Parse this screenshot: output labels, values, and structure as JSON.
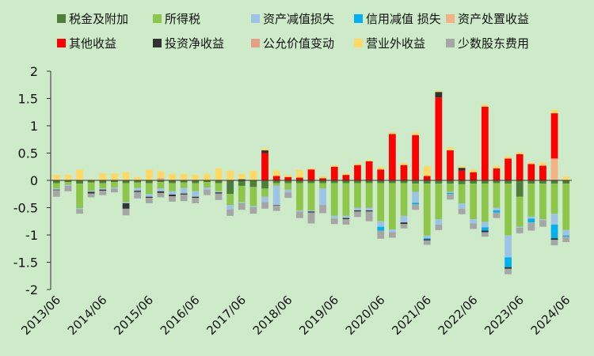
{
  "chart_data": {
    "type": "bar",
    "stacked": true,
    "xlabel": "",
    "ylabel": "",
    "ylim": [
      -2,
      2
    ],
    "yticks": [
      2,
      1.5,
      1,
      0.5,
      0,
      -0.5,
      -1,
      -1.5,
      -2
    ],
    "ytick_labels": [
      "2",
      "1.5",
      "1",
      "0.5",
      "0",
      "-0.5",
      "-1",
      "-1.5",
      "-2"
    ],
    "grid": false,
    "legend_position": "top",
    "categories": [
      "2013/06",
      "2013/09",
      "2013/12",
      "2014/03",
      "2014/06",
      "2014/09",
      "2014/12",
      "2015/03",
      "2015/06",
      "2015/09",
      "2015/12",
      "2016/03",
      "2016/06",
      "2016/09",
      "2016/12",
      "2017/03",
      "2017/06",
      "2017/09",
      "2017/12",
      "2018/03",
      "2018/06",
      "2018/09",
      "2018/12",
      "2019/03",
      "2019/06",
      "2019/09",
      "2019/12",
      "2020/03",
      "2020/06",
      "2020/09",
      "2020/12",
      "2021/03",
      "2021/06",
      "2021/09",
      "2021/12",
      "2022/03",
      "2022/06",
      "2022/09",
      "2022/12",
      "2023/03",
      "2023/06",
      "2023/09",
      "2023/12",
      "2024/03",
      "2024/06"
    ],
    "xtick_labels": [
      "2013/06",
      "2014/06",
      "2015/06",
      "2016/06",
      "2017/06",
      "2018/06",
      "2019/06",
      "2020/06",
      "2021/06",
      "2022/06",
      "2023/06",
      "2024/06"
    ],
    "series": [
      {
        "name": "税金及附加",
        "color": "#4e7f3a",
        "values": [
          -0.05,
          -0.03,
          -0.06,
          -0.04,
          -0.05,
          -0.03,
          -0.05,
          -0.04,
          -0.05,
          -0.03,
          -0.05,
          -0.04,
          -0.05,
          -0.03,
          -0.05,
          -0.25,
          -0.1,
          -0.12,
          -0.15,
          -0.05,
          -0.05,
          -0.05,
          -0.05,
          -0.05,
          -0.05,
          -0.05,
          -0.05,
          -0.05,
          -0.05,
          -0.05,
          -0.05,
          -0.06,
          -0.06,
          -0.06,
          -0.06,
          -0.07,
          -0.06,
          -0.06,
          -0.05,
          -0.06,
          -0.3,
          -0.06,
          -0.06,
          -0.06,
          -0.06
        ]
      },
      {
        "name": "所得税",
        "color": "#8ec64a",
        "values": [
          -0.1,
          -0.05,
          -0.45,
          -0.15,
          -0.1,
          -0.1,
          -0.35,
          -0.1,
          -0.2,
          -0.12,
          -0.15,
          -0.1,
          -0.15,
          -0.1,
          -0.15,
          -0.2,
          -0.3,
          -0.35,
          -0.15,
          -0.05,
          -0.12,
          -0.5,
          -0.5,
          -0.1,
          -0.6,
          -0.6,
          -0.45,
          -0.45,
          -0.7,
          -0.85,
          -0.6,
          -0.15,
          -0.95,
          -0.65,
          -0.15,
          -0.35,
          -0.65,
          -0.7,
          -0.45,
          -0.95,
          -0.55,
          -0.6,
          -0.65,
          -0.55,
          -0.85
        ]
      },
      {
        "name": "资产减值损失",
        "color": "#9dc3e6",
        "values": [
          -0.02,
          -0.02,
          -0.02,
          -0.02,
          -0.02,
          -0.02,
          -0.02,
          -0.05,
          -0.05,
          -0.05,
          -0.06,
          -0.1,
          -0.1,
          -0.04,
          -0.02,
          -0.08,
          -0.02,
          -0.02,
          -0.1,
          -0.35,
          -0.05,
          -0.02,
          -0.02,
          -0.3,
          -0.05,
          -0.04,
          -0.05,
          -0.05,
          -0.1,
          -0.05,
          -0.12,
          -0.2,
          -0.05,
          -0.1,
          -0.02,
          -0.1,
          -0.08,
          -0.1,
          -0.05,
          -0.4,
          -0.02,
          -0.04,
          -0.02,
          -0.2,
          -0.1
        ]
      },
      {
        "name": "信用减值 损失",
        "color": "#00b0f0",
        "values": [
          0,
          0,
          0,
          0,
          0,
          0,
          0,
          0,
          0,
          0,
          0,
          0,
          0,
          0,
          0,
          0,
          0,
          0,
          0,
          0,
          0,
          0,
          0,
          0,
          0,
          0,
          0,
          0,
          -0.07,
          0,
          0,
          -0.03,
          -0.02,
          0,
          -0.02,
          0,
          0,
          -0.06,
          -0.04,
          -0.18,
          0,
          -0.07,
          0,
          -0.25,
          -0.02
        ]
      },
      {
        "name": "资产处置收益",
        "color": "#f4b183",
        "values": [
          0,
          0,
          0,
          0,
          0,
          0,
          0,
          0,
          0,
          0,
          0,
          0,
          0,
          0,
          0,
          0,
          0,
          0,
          0,
          0,
          0,
          0,
          0,
          0,
          0,
          0,
          0,
          0,
          0,
          0,
          0,
          0,
          0,
          0,
          0,
          0,
          0,
          0,
          0,
          0,
          0,
          0,
          0,
          0.4,
          0
        ]
      },
      {
        "name": "其他收益",
        "color": "#ff0000",
        "values": [
          0,
          0,
          0,
          0,
          0,
          0,
          0,
          0,
          0,
          0,
          0,
          0,
          0,
          0,
          0,
          0,
          0,
          0,
          0.5,
          0.08,
          0.06,
          0.05,
          0.2,
          0.04,
          0.25,
          0.1,
          0.28,
          0.35,
          0.2,
          0.85,
          0.28,
          0.83,
          0.08,
          1.52,
          0.55,
          0.18,
          0.15,
          1.35,
          0.22,
          0.4,
          0.48,
          0.3,
          0.27,
          0.83,
          0
        ]
      },
      {
        "name": "投资净收益",
        "color": "#333333",
        "values": [
          -0.01,
          0,
          0,
          -0.03,
          -0.02,
          0,
          -0.1,
          -0.02,
          -0.02,
          -0.03,
          -0.03,
          -0.02,
          -0.02,
          0,
          -0.02,
          0,
          0.02,
          0,
          0.05,
          -0.01,
          0,
          0,
          -0.02,
          0,
          0,
          -0.02,
          -0.02,
          -0.02,
          0,
          0,
          -0.03,
          0,
          -0.02,
          0.1,
          0,
          0.05,
          0,
          -0.03,
          0,
          -0.03,
          0,
          0,
          0,
          -0.03,
          0
        ]
      },
      {
        "name": "公允价值变动",
        "color": "#e69f85",
        "values": [
          0,
          0,
          0,
          0,
          0,
          0,
          0,
          0,
          0,
          0.04,
          0,
          0,
          0,
          0,
          0,
          0,
          0,
          0,
          0,
          0,
          0,
          0,
          0,
          0,
          0,
          0,
          0,
          0,
          0,
          0,
          0,
          0,
          0,
          0,
          0,
          0,
          0,
          0,
          0,
          0,
          0,
          0,
          0,
          0,
          0
        ]
      },
      {
        "name": "营业外收益",
        "color": "#ffd966",
        "values": [
          0.1,
          0.1,
          0.2,
          0.02,
          0.13,
          0.13,
          0.15,
          0.06,
          0.2,
          0.13,
          0.12,
          0.12,
          0.1,
          0.12,
          0.22,
          0.18,
          0.1,
          0.18,
          0.03,
          0.1,
          0.04,
          0.14,
          0.02,
          0.03,
          0.03,
          0.03,
          0.03,
          0.02,
          0.05,
          0.03,
          0.04,
          0.05,
          0.18,
          0.02,
          0.05,
          0.03,
          0.05,
          0.04,
          0.05,
          0.04,
          0.04,
          0.03,
          0.06,
          0.06,
          0.07
        ]
      },
      {
        "name": "少数股东费用",
        "color": "#a6a6a6",
        "values": [
          -0.12,
          -0.1,
          -0.08,
          -0.07,
          -0.08,
          -0.07,
          -0.12,
          -0.12,
          -0.1,
          -0.08,
          -0.1,
          -0.12,
          -0.1,
          -0.1,
          -0.12,
          -0.12,
          -0.12,
          -0.12,
          -0.12,
          -0.1,
          -0.1,
          -0.12,
          -0.2,
          -0.15,
          -0.1,
          -0.1,
          -0.1,
          -0.18,
          -0.15,
          -0.1,
          -0.08,
          -0.1,
          -0.08,
          -0.1,
          -0.1,
          -0.1,
          -0.1,
          -0.08,
          -0.1,
          -0.1,
          -0.1,
          -0.15,
          -0.12,
          -0.1,
          -0.1
        ]
      }
    ]
  }
}
